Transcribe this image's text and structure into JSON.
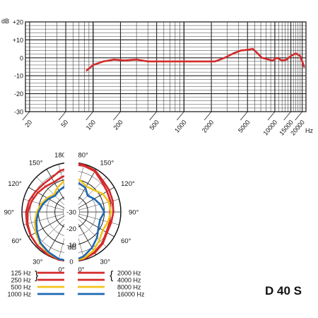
{
  "model": "D 40 S",
  "chart_data": [
    {
      "type": "line",
      "title": "",
      "ylabel": "dB",
      "xlabel": "Hz",
      "x_scale": "log",
      "xlim": [
        18,
        22000
      ],
      "ylim": [
        -30,
        20
      ],
      "grid": true,
      "y_ticks": [
        "+20",
        "+10",
        "0",
        "-10",
        "-20",
        "-30"
      ],
      "y_tick_values": [
        20,
        10,
        0,
        -10,
        -20,
        -30
      ],
      "x_ticks": [
        "20",
        "50",
        "100",
        "200",
        "500",
        "1000",
        "2000",
        "5000",
        "10000",
        "15000",
        "20000"
      ],
      "x_tick_values": [
        20,
        50,
        100,
        200,
        500,
        1000,
        2000,
        5000,
        10000,
        15000,
        20000
      ],
      "series": [
        {
          "color": "#d42a2a",
          "x": [
            85,
            100,
            130,
            170,
            220,
            300,
            400,
            600,
            900,
            1500,
            2200,
            2800,
            3500,
            4200,
            5000,
            5700,
            6300,
            7200,
            8500,
            9500,
            10500,
            12000,
            13500,
            15000,
            17000,
            19000,
            21000
          ],
          "y": [
            -7,
            -4,
            -2,
            -1,
            -1.5,
            -1,
            -2,
            -2,
            -2,
            -2,
            -2,
            0,
            2.5,
            4,
            4.5,
            5,
            3,
            0,
            -1,
            -1.5,
            0,
            -1.5,
            -1,
            1,
            2.5,
            1,
            -5
          ]
        }
      ]
    },
    {
      "type": "polar",
      "title": "",
      "r_unit": "dB",
      "r_range": [
        -30,
        0
      ],
      "r_ticks": [
        "0",
        "-10",
        "-20",
        "-30"
      ],
      "r_tick_values": [
        0,
        -10,
        -20,
        -30
      ],
      "angle_labels": [
        "0°",
        "30°",
        "60°",
        "90°",
        "120°",
        "150°",
        "180°"
      ],
      "angle_values": [
        0,
        30,
        60,
        90,
        120,
        150,
        180
      ],
      "angles_deg": [
        0,
        15,
        30,
        45,
        60,
        75,
        90,
        105,
        120,
        135,
        150,
        165,
        180
      ],
      "left_half": [
        {
          "name": "125 Hz",
          "color": "#d42a2a",
          "values": [
            0,
            0,
            -0.5,
            -1,
            -1.5,
            -2,
            -2.5,
            -3.5,
            -5,
            -6,
            -6,
            -4,
            -3
          ]
        },
        {
          "name": "250 Hz",
          "color": "#d42a2a",
          "values": [
            0,
            0,
            -0.5,
            -1,
            -1.5,
            -2.5,
            -3.5,
            -5,
            -6.5,
            -8,
            -9,
            -8,
            -7
          ]
        },
        {
          "name": "500 Hz",
          "color": "#f2c41c",
          "values": [
            0,
            -0.5,
            -1.5,
            -3,
            -5,
            -7,
            -9,
            -11,
            -13,
            -15,
            -13,
            -11,
            -10
          ]
        },
        {
          "name": "1000 Hz",
          "color": "#1d68b4",
          "values": [
            0,
            -0.5,
            -2,
            -3.5,
            -6,
            -8,
            -10,
            -12,
            -14,
            -16,
            -15,
            -14,
            -13
          ]
        }
      ],
      "right_half": [
        {
          "name": "2000 Hz",
          "color": "#d42a2a",
          "values": [
            0,
            -0.5,
            -1.5,
            -3,
            -5,
            -5,
            -4.5,
            -4,
            -3.5,
            -3,
            -1,
            -0.5,
            0
          ]
        },
        {
          "name": "4000 Hz",
          "color": "#d42a2a",
          "values": [
            0,
            -1,
            -2,
            -3.5,
            -5.5,
            -6,
            -6.5,
            -5.5,
            -5,
            -4,
            -1.5,
            -1,
            -1
          ]
        },
        {
          "name": "8000 Hz",
          "color": "#f2c41c",
          "values": [
            0,
            -1,
            -3,
            -6,
            -8,
            -7,
            -6,
            -6.5,
            -8,
            -11,
            -12,
            -10,
            -9
          ]
        },
        {
          "name": "16000 Hz",
          "color": "#1d68b4",
          "values": [
            0,
            -2,
            -5,
            -8,
            -11,
            -12,
            -10,
            -12,
            -14,
            -16,
            -13,
            -12,
            -11
          ]
        }
      ]
    }
  ],
  "legend": {
    "left_labels": [
      "125 Hz",
      "250 Hz",
      "500 Hz",
      "1000 Hz"
    ],
    "right_labels": [
      "2000 Hz",
      "4000 Hz",
      "8000 Hz",
      "16000 Hz"
    ],
    "colors": [
      "#d42a2a",
      "#d42a2a",
      "#f2c41c",
      "#1d68b4"
    ]
  }
}
